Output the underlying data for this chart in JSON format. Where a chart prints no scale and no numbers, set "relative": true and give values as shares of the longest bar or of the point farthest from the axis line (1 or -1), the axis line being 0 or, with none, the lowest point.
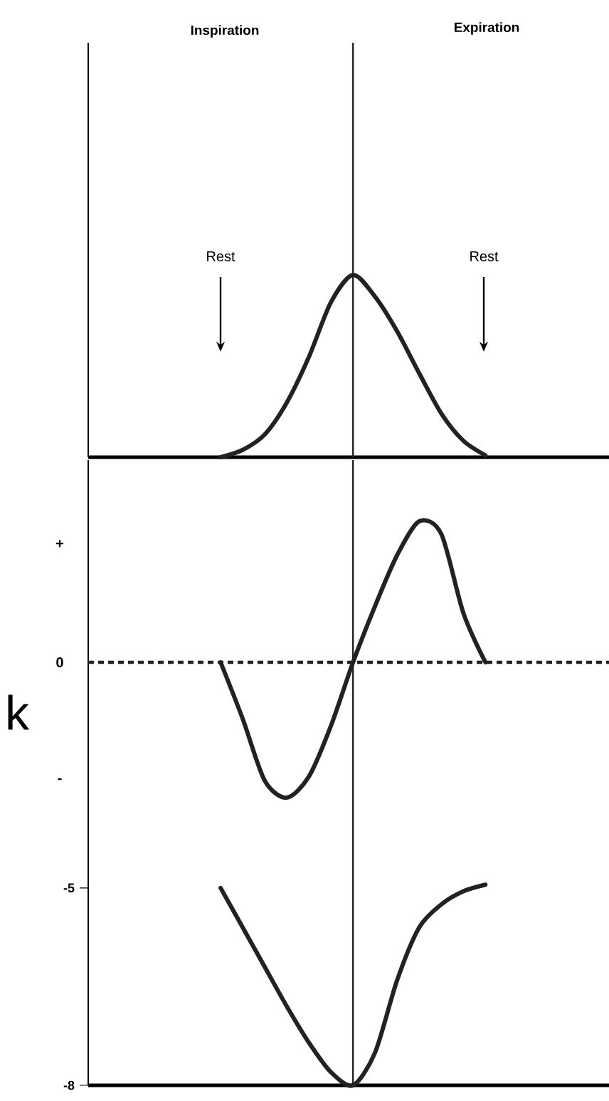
{
  "chart_data": [
    {
      "type": "line",
      "relative": true,
      "tick_labels": false,
      "line_style": "solid",
      "categories": [
        null,
        null,
        null,
        null,
        null,
        null,
        null,
        null,
        null,
        null,
        null,
        null,
        null,
        null,
        null,
        null,
        null,
        null,
        null,
        null,
        null,
        null,
        null,
        null
      ],
      "series": [
        {
          "color": "#222222",
          "values": [
            null,
            null,
            null,
            null,
            null,
            null,
            0,
            0.04,
            0.125,
            0.3,
            0.55,
            0.85,
            1,
            0.88,
            0.69,
            0.46,
            0.24,
            0.09,
            0.01,
            null,
            null,
            null,
            null,
            null
          ]
        }
      ],
      "annotations": [
        "Inspiration",
        "Expiration",
        "Rest",
        "Rest"
      ]
    },
    {
      "type": "line",
      "relative": true,
      "tick_labels": false,
      "line_style": "solid",
      "categories": [
        null,
        null,
        null,
        null,
        null,
        null,
        null,
        null,
        null,
        null,
        null,
        null,
        null,
        null,
        null,
        null,
        null,
        null,
        null,
        null,
        null,
        null,
        null,
        null
      ],
      "series": [
        {
          "color": "#222222",
          "values": [
            null,
            null,
            null,
            null,
            null,
            null,
            0,
            -0.4,
            -0.84,
            -0.96,
            -0.81,
            -0.45,
            0,
            0.4,
            0.76,
            1,
            0.91,
            0.35,
            0,
            null,
            null,
            null,
            null,
            null
          ]
        }
      ],
      "ref_lines": [
        {
          "axis": "y",
          "value": 0,
          "color": "#222222",
          "line_style": "dotted"
        }
      ],
      "annotations": [
        "k",
        "+",
        "0",
        "-"
      ]
    },
    {
      "type": "line",
      "tick_labels": "y",
      "line_style": "solid",
      "categories": [
        null,
        null,
        null,
        null,
        null,
        null,
        null,
        null,
        null,
        null,
        null,
        null,
        null,
        null,
        null,
        null,
        null,
        null,
        null,
        null,
        null,
        null,
        null,
        null
      ],
      "ylim": [
        -8,
        -3.8
      ],
      "yticks": [
        -5,
        -8
      ],
      "series": [
        {
          "color": "#222222",
          "values": [
            null,
            null,
            null,
            null,
            null,
            null,
            -5.0,
            -5.6,
            -6.2,
            -6.8,
            -7.35,
            -7.8,
            -8.0,
            -7.5,
            -6.4,
            -5.6,
            -5.25,
            -5.05,
            -4.95,
            null,
            null,
            null,
            null,
            null
          ]
        }
      ]
    }
  ]
}
